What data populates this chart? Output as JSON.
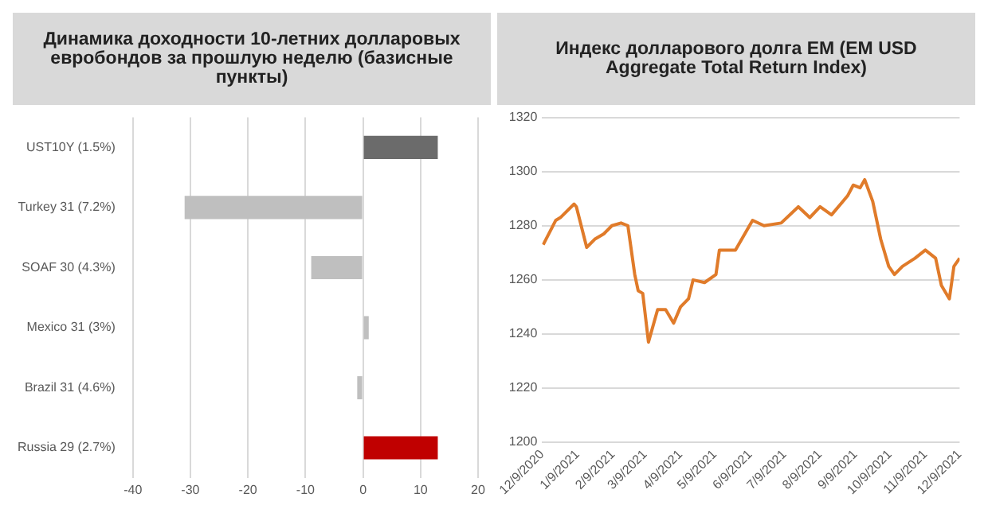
{
  "chart_data": [
    {
      "type": "bar",
      "title": "Динамика доходности 10-летних долларовых евробондов за прошлую неделю (базисные пункты)",
      "orientation": "horizontal",
      "categories": [
        "UST10Y (1.5%)",
        "Turkey 31 (7.2%)",
        "SOAF 30 (4.3%)",
        "Mexico 31 (3%)",
        "Brazil 31 (4.6%)",
        "Russia 29 (2.7%)"
      ],
      "values": [
        13,
        -31,
        -9,
        1,
        -1,
        13
      ],
      "colors": [
        "#6b6b6b",
        "#bfbfbf",
        "#bfbfbf",
        "#bfbfbf",
        "#bfbfbf",
        "#c00000"
      ],
      "xlim": [
        -40,
        20
      ],
      "xticks": [
        -40,
        -30,
        -20,
        -10,
        0,
        10,
        20
      ],
      "grid": "x"
    },
    {
      "type": "line",
      "title": "Индекс долларового долга EM (EM USD Aggregate Total Return Index)",
      "color": "#e07b2a",
      "grid": "y",
      "x": [
        "2020-12-10",
        "2020-12-21",
        "2020-12-25",
        "2021-01-06",
        "2021-01-08",
        "2021-01-17",
        "2021-01-24",
        "2021-02-01",
        "2021-02-08",
        "2021-02-16",
        "2021-02-22",
        "2021-02-28",
        "2021-03-03",
        "2021-03-07",
        "2021-03-12",
        "2021-03-20",
        "2021-03-27",
        "2021-04-03",
        "2021-04-09",
        "2021-04-16",
        "2021-04-20",
        "2021-04-30",
        "2021-05-10",
        "2021-05-13",
        "2021-05-27",
        "2021-06-11",
        "2021-06-21",
        "2021-07-06",
        "2021-07-21",
        "2021-07-31",
        "2021-08-09",
        "2021-08-19",
        "2021-09-02",
        "2021-09-07",
        "2021-09-13",
        "2021-09-17",
        "2021-09-24",
        "2021-10-01",
        "2021-10-08",
        "2021-10-13",
        "2021-10-20",
        "2021-10-31",
        "2021-11-09",
        "2021-11-18",
        "2021-11-23",
        "2021-11-30",
        "2021-12-04",
        "2021-12-09"
      ],
      "values": [
        1273,
        1282,
        1283,
        1288,
        1287,
        1272,
        1275,
        1277,
        1280,
        1281,
        1280,
        1262,
        1256,
        1255,
        1237,
        1249,
        1249,
        1244,
        1250,
        1253,
        1260,
        1259,
        1262,
        1271,
        1271,
        1282,
        1280,
        1281,
        1287,
        1283,
        1287,
        1284,
        1291,
        1295,
        1294,
        1297,
        1289,
        1275,
        1265,
        1262,
        1265,
        1268,
        1271,
        1268,
        1258,
        1253,
        1265,
        1268
      ],
      "xlim": [
        "2020-12-09",
        "2021-12-09"
      ],
      "xticks": [
        {
          "value": "2020-12-09",
          "label": "12/9/2020"
        },
        {
          "value": "2021-01-09",
          "label": "1/9/2021"
        },
        {
          "value": "2021-02-09",
          "label": "2/9/2021"
        },
        {
          "value": "2021-03-09",
          "label": "3/9/2021"
        },
        {
          "value": "2021-04-09",
          "label": "4/9/2021"
        },
        {
          "value": "2021-05-09",
          "label": "5/9/2021"
        },
        {
          "value": "2021-06-09",
          "label": "6/9/2021"
        },
        {
          "value": "2021-07-09",
          "label": "7/9/2021"
        },
        {
          "value": "2021-08-09",
          "label": "8/9/2021"
        },
        {
          "value": "2021-09-09",
          "label": "9/9/2021"
        },
        {
          "value": "2021-10-09",
          "label": "10/9/2021"
        },
        {
          "value": "2021-11-09",
          "label": "11/9/2021"
        },
        {
          "value": "2021-12-09",
          "label": "12/9/2021"
        }
      ],
      "ylim": [
        1200,
        1320
      ],
      "yticks": [
        1200,
        1220,
        1240,
        1260,
        1280,
        1300,
        1320
      ]
    }
  ]
}
